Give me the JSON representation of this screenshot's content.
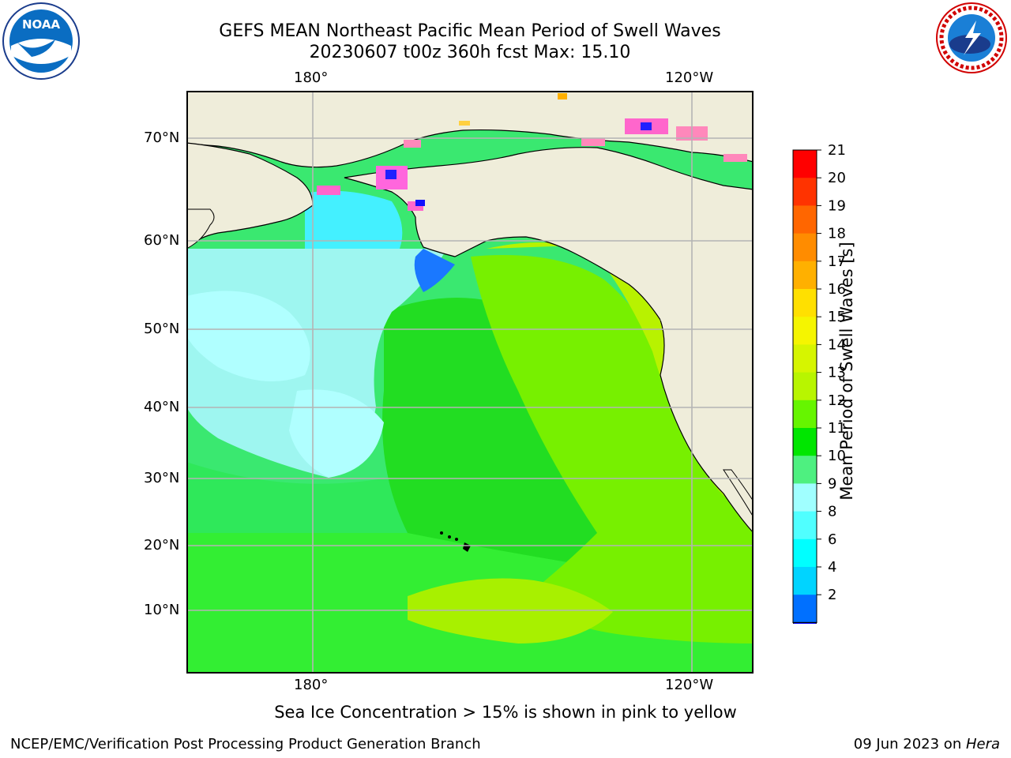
{
  "title": {
    "line1": "GEFS MEAN Northeast Pacific Mean Period of Swell Waves",
    "line2": "20230607 t00z 360h fcst   Max: 15.10"
  },
  "map": {
    "lon_labels": [
      "180°",
      "120°W"
    ],
    "lat_labels": [
      "70°N",
      "60°N",
      "50°N",
      "40°N",
      "30°N",
      "20°N",
      "10°N"
    ],
    "land_color": "#efedda",
    "grid_color": "#b4b4b4"
  },
  "colorbar": {
    "label": "Mean Period of Swell Waves [s]",
    "ticks": [
      "21",
      "20",
      "19",
      "18",
      "17",
      "16",
      "15",
      "14",
      "13",
      "12",
      "11",
      "10",
      "9",
      "8",
      "6",
      "4",
      "2"
    ],
    "colors": [
      "#ff0000",
      "#ff3300",
      "#ff6600",
      "#ff8c00",
      "#ffb000",
      "#ffe000",
      "#f5f500",
      "#d6f500",
      "#b8f500",
      "#66f500",
      "#00e600",
      "#4ef080",
      "#a0ffff",
      "#50ffff",
      "#00ffff",
      "#00d4ff",
      "#0070ff"
    ],
    "extend_color": "#0000ff"
  },
  "logos": {
    "left": "NOAA",
    "right": "NATIONAL WEATHER SERVICE"
  },
  "footer": {
    "note": "Sea Ice Concentration > 15% is shown in pink to yellow",
    "left": "NCEP/EMC/Verification Post Processing Product Generation Branch",
    "right_prefix": "09 Jun 2023 on ",
    "right_host": "Hera"
  }
}
